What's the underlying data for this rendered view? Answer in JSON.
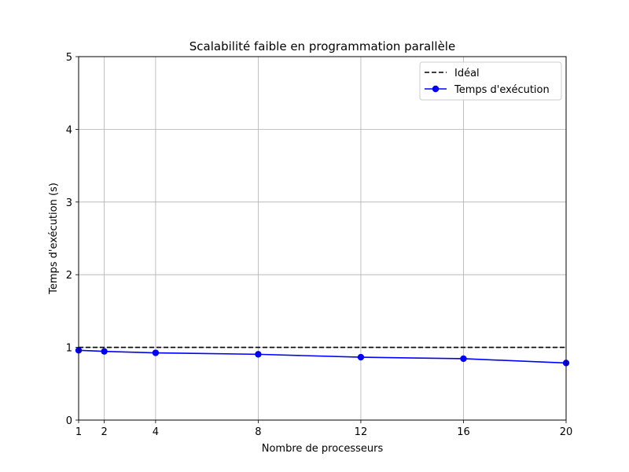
{
  "chart_data": {
    "type": "line",
    "title": "Scalabilité faible en programmation parallèle",
    "xlabel": "Nombre de processeurs",
    "ylabel": "Temps d'exécution (s)",
    "xlim": [
      1,
      20
    ],
    "ylim": [
      0,
      5
    ],
    "xticks": [
      1,
      2,
      4,
      8,
      12,
      16,
      20
    ],
    "yticks": [
      0,
      1,
      2,
      3,
      4,
      5
    ],
    "grid": true,
    "legend_position": "top-right",
    "series": [
      {
        "name": "Idéal",
        "style": "dashed",
        "color": "#000000",
        "marker": "none",
        "x": [
          1,
          20
        ],
        "y": [
          1,
          1
        ]
      },
      {
        "name": "Temps d'exécution",
        "style": "solid",
        "color": "#0000ff",
        "marker": "circle",
        "x": [
          1,
          2,
          4,
          8,
          12,
          16,
          20
        ],
        "y": [
          0.96,
          0.945,
          0.925,
          0.905,
          0.865,
          0.845,
          0.785
        ]
      }
    ]
  }
}
